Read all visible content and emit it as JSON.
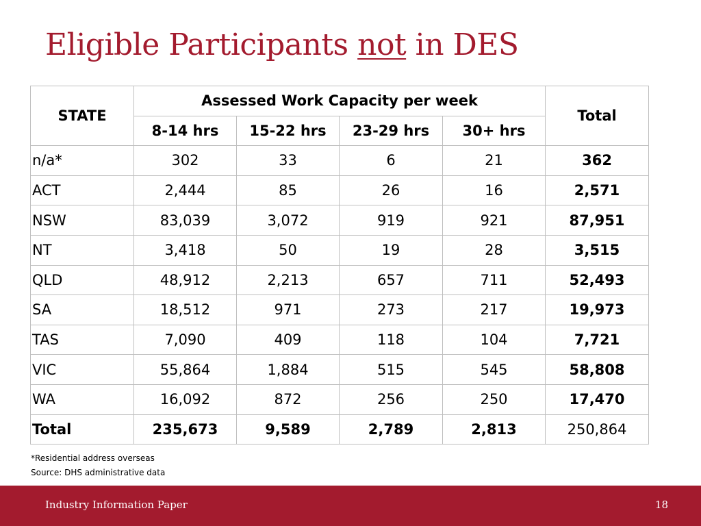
{
  "title": {
    "part1": "Eligible Participants ",
    "underlined": "not",
    "part2": " in DES"
  },
  "table": {
    "state_header": "STATE",
    "group_header": "Assessed Work Capacity per week",
    "total_header": "Total",
    "sub_headers": [
      "8-14 hrs",
      "15-22 hrs",
      "23-29 hrs",
      "30+ hrs"
    ],
    "rows": [
      {
        "state": "n/a*",
        "values": [
          "302",
          "33",
          "6",
          "21"
        ],
        "total": "362"
      },
      {
        "state": "ACT",
        "values": [
          "2,444",
          "85",
          "26",
          "16"
        ],
        "total": "2,571"
      },
      {
        "state": "NSW",
        "values": [
          "83,039",
          "3,072",
          "919",
          "921"
        ],
        "total": "87,951"
      },
      {
        "state": "NT",
        "values": [
          "3,418",
          "50",
          "19",
          "28"
        ],
        "total": "3,515"
      },
      {
        "state": "QLD",
        "values": [
          "48,912",
          "2,213",
          "657",
          "711"
        ],
        "total": "52,493"
      },
      {
        "state": "SA",
        "values": [
          "18,512",
          "971",
          "273",
          "217"
        ],
        "total": "19,973"
      },
      {
        "state": "TAS",
        "values": [
          "7,090",
          "409",
          "118",
          "104"
        ],
        "total": "7,721"
      },
      {
        "state": "VIC",
        "values": [
          "55,864",
          "1,884",
          "515",
          "545"
        ],
        "total": "58,808"
      },
      {
        "state": "WA",
        "values": [
          "16,092",
          "872",
          "256",
          "250"
        ],
        "total": "17,470"
      }
    ],
    "total_row": {
      "state": "Total",
      "values": [
        "235,673",
        "9,589",
        "2,789",
        "2,813"
      ],
      "total": "250,864"
    }
  },
  "notes": {
    "footnote": "*Residential address overseas",
    "source": "Source: DHS administrative data"
  },
  "footer": {
    "text": "Industry Information Paper",
    "page_number": "18"
  },
  "colors": {
    "accent": "#a31b2e",
    "grid": "#bfbfbf"
  }
}
